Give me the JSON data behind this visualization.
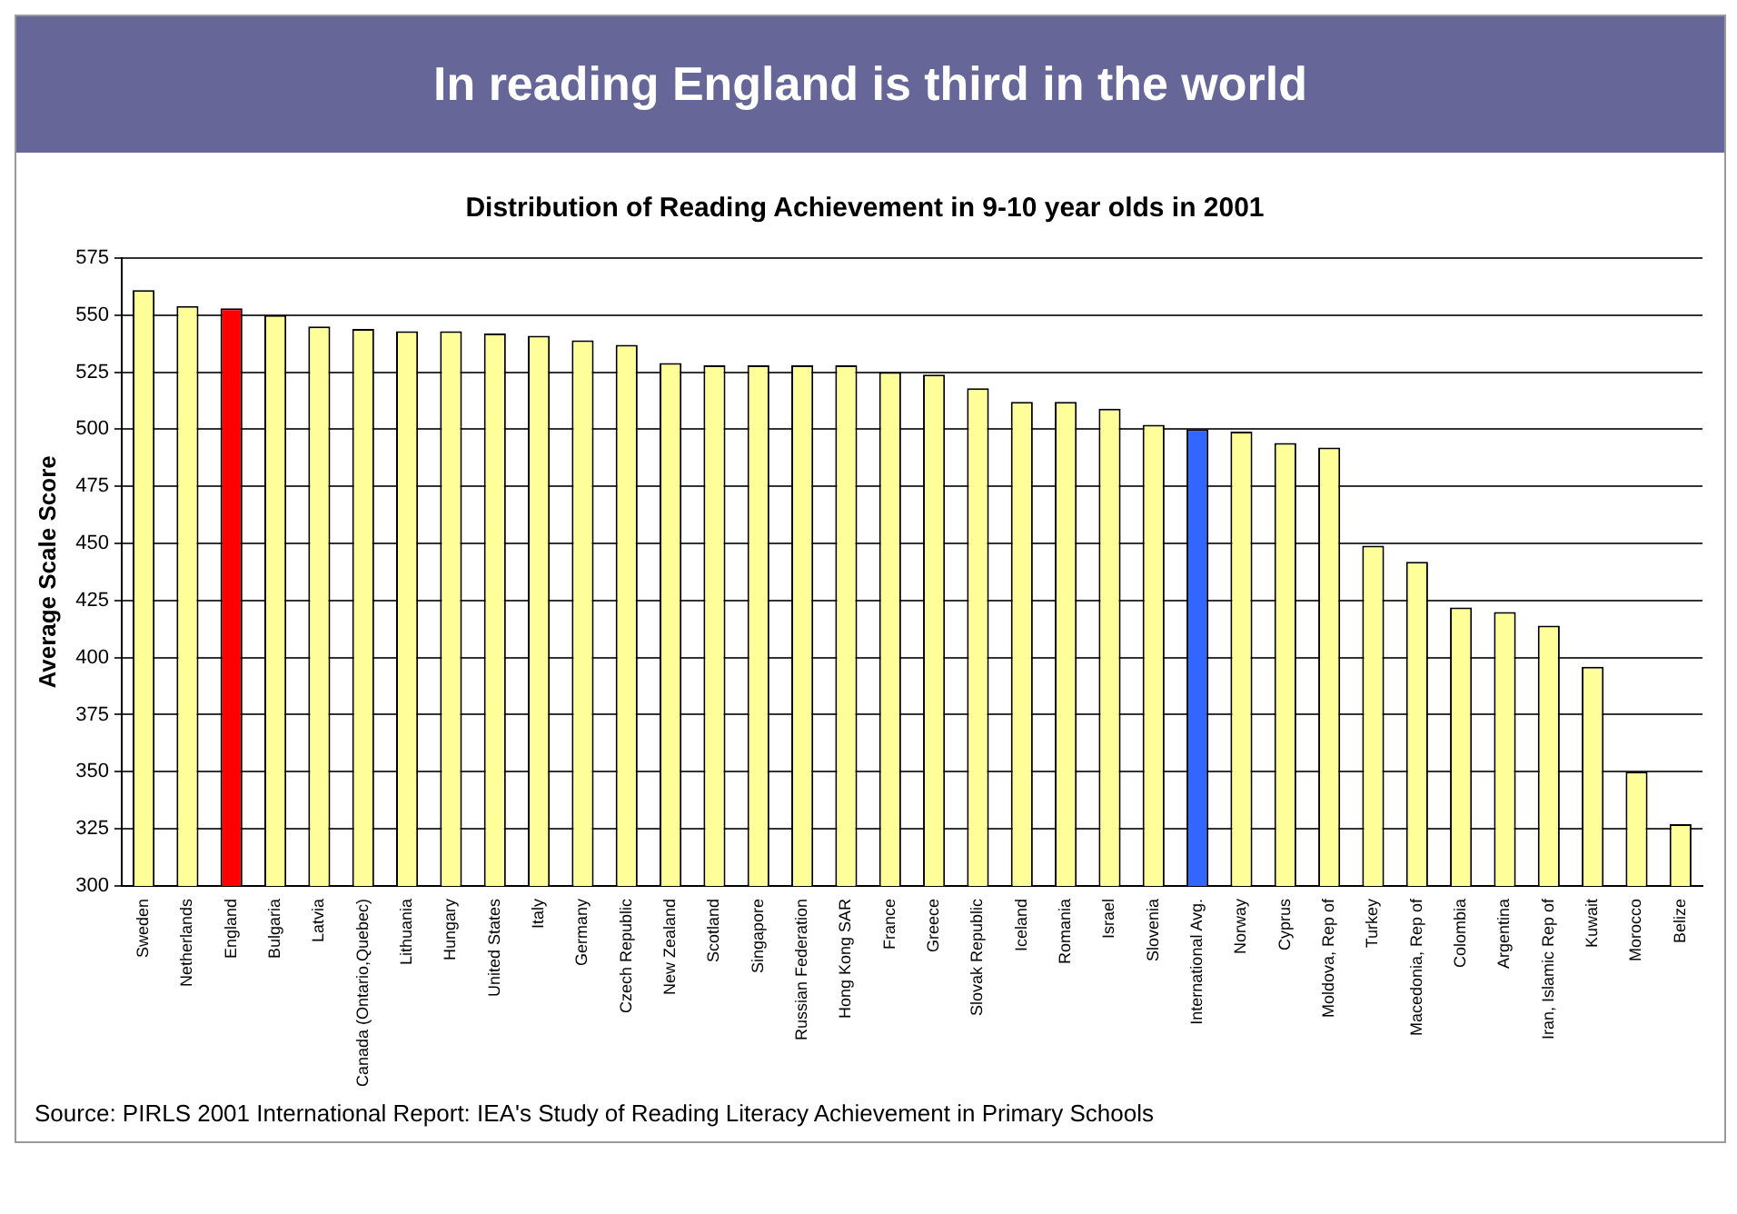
{
  "chart_data": {
    "type": "bar",
    "title": "In reading England is third in the world",
    "subtitle": "Distribution of Reading Achievement in 9-10 year olds in 2001",
    "ylabel": "Average Scale Score",
    "categories": [
      "Sweden",
      "Netherlands",
      "England",
      "Bulgaria",
      "Latvia",
      "Canada (Ontario,Quebec)",
      "Lithuania",
      "Hungary",
      "United States",
      "Italy",
      "Germany",
      "Czech Republic",
      "New Zealand",
      "Scotland",
      "Singapore",
      "Russian Federation",
      "Hong Kong SAR",
      "France",
      "Greece",
      "Slovak Republic",
      "Iceland",
      "Romania",
      "Israel",
      "Slovenia",
      "International Avg.",
      "Norway",
      "Cyprus",
      "Moldova, Rep of",
      "Turkey",
      "Macedonia, Rep of",
      "Colombia",
      "Argentina",
      "Iran, Islamic Rep of",
      "Kuwait",
      "Morocco",
      "Belize"
    ],
    "values": [
      561,
      554,
      553,
      550,
      545,
      544,
      543,
      543,
      542,
      541,
      539,
      537,
      529,
      528,
      528,
      528,
      528,
      525,
      524,
      518,
      512,
      512,
      509,
      502,
      500,
      499,
      494,
      492,
      449,
      442,
      422,
      420,
      414,
      396,
      350,
      327
    ],
    "colors": [
      "#ffff99",
      "#ffff99",
      "#ff0000",
      "#ffff99",
      "#ffff99",
      "#ffff99",
      "#ffff99",
      "#ffff99",
      "#ffff99",
      "#ffff99",
      "#ffff99",
      "#ffff99",
      "#ffff99",
      "#ffff99",
      "#ffff99",
      "#ffff99",
      "#ffff99",
      "#ffff99",
      "#ffff99",
      "#ffff99",
      "#ffff99",
      "#ffff99",
      "#ffff99",
      "#ffff99",
      "#3366ff",
      "#ffff99",
      "#ffff99",
      "#ffff99",
      "#ffff99",
      "#ffff99",
      "#ffff99",
      "#ffff99",
      "#ffff99",
      "#ffff99",
      "#ffff99",
      "#ffff99"
    ],
    "ylim": [
      300,
      575
    ],
    "yticks": [
      300,
      325,
      350,
      375,
      400,
      425,
      450,
      475,
      500,
      525,
      550,
      575
    ],
    "grid": "y",
    "annotations": [
      "Source: PIRLS 2001 International Report: IEA's Study of Reading Literacy Achievement in Primary Schools"
    ]
  }
}
